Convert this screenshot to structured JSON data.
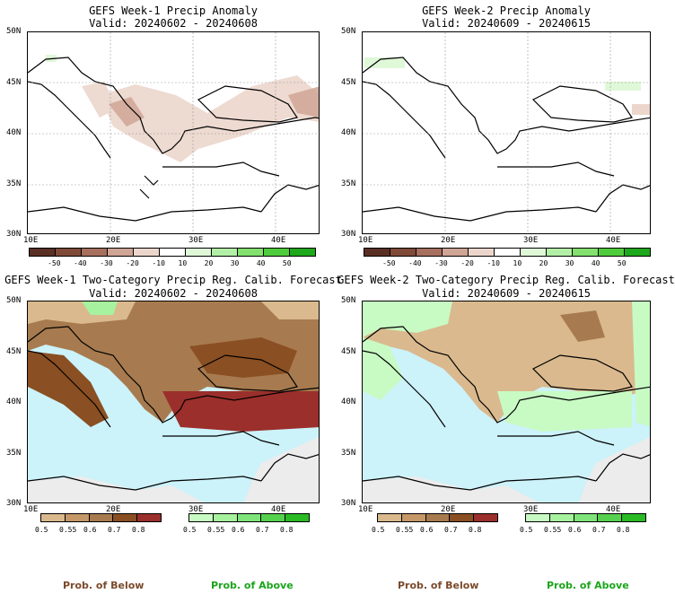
{
  "panels": [
    {
      "title": "GEFS Week-1 Precip Anomaly",
      "valid": "Valid: 20240602 - 20240608"
    },
    {
      "title": "GEFS Week-2 Precip Anomaly",
      "valid": "Valid: 20240609 - 20240615"
    },
    {
      "title": "GEFS Week-1 Two-Category Precip Reg. Calib. Forecast",
      "valid": "Valid: 20240602 - 20240608"
    },
    {
      "title": "GEFS Week-2 Two-Category Precip Reg. Calib. Forecast",
      "valid": "Valid: 20240609 - 20240615"
    }
  ],
  "lat_ticks": [
    "50N",
    "45N",
    "40N",
    "35N",
    "30N"
  ],
  "lon_ticks": [
    "10E",
    "20E",
    "30E",
    "40E"
  ],
  "anomaly_colorbar": {
    "labels": [
      "-50",
      "-40",
      "-30",
      "-20",
      "-10",
      "10",
      "20",
      "30",
      "40",
      "50"
    ],
    "colors": [
      "#5a3024",
      "#7f4a38",
      "#a76f5e",
      "#cfa595",
      "#ecd6cc",
      "#ffffff",
      "#dff8d8",
      "#b3f0a7",
      "#84e06f",
      "#4fcc3d",
      "#1ea81b"
    ]
  },
  "below_colorbar": {
    "labels": [
      "0.5",
      "0.55",
      "0.6",
      "0.7",
      "0.8"
    ],
    "colors": [
      "#dab98e",
      "#c49868",
      "#a77b4f",
      "#8a4f22",
      "#9b2f2b"
    ]
  },
  "above_colorbar": {
    "labels": [
      "0.5",
      "0.55",
      "0.6",
      "0.7",
      "0.8"
    ],
    "colors": [
      "#c8fac4",
      "#a6f29e",
      "#7ee47a",
      "#55d14f",
      "#2aba25"
    ]
  },
  "legend": {
    "below": "Prob. of Below",
    "above": "Prob. of Above",
    "below_color": "#7a4a2a",
    "above_color": "#1aa51a"
  }
}
